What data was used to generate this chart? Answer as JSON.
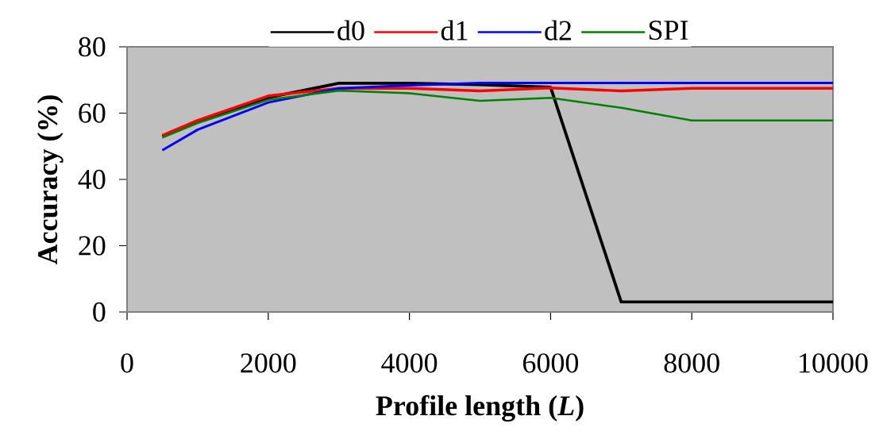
{
  "chart_data": {
    "type": "line",
    "xlabel": "**Profile length (*L*)**",
    "ylabel": "Accuracy (%)",
    "x": [
      500,
      1000,
      2000,
      3000,
      4000,
      5000,
      6000,
      7000,
      8000,
      9000,
      10000
    ],
    "series": [
      {
        "name": "d0",
        "color": "#000000",
        "values": [
          53,
          57.5,
          64.7,
          69,
          69,
          68.6,
          67.8,
          3,
          3,
          3,
          3
        ]
      },
      {
        "name": "d1",
        "color": "#ff0000",
        "values": [
          53.3,
          57.8,
          65.2,
          67.5,
          67.5,
          66.7,
          67.6,
          66.7,
          67.5,
          67.5,
          67.5
        ]
      },
      {
        "name": "d2",
        "color": "#0000ff",
        "values": [
          48.8,
          55,
          63.2,
          67.5,
          68.4,
          69.1,
          69.1,
          69.1,
          69.1,
          69.1,
          69.1
        ]
      },
      {
        "name": "SPI",
        "color": "#008000",
        "values": [
          52.6,
          57,
          64,
          66.8,
          66,
          63.7,
          64.6,
          61.6,
          57.8,
          57.8,
          57.8
        ]
      }
    ],
    "xlim": [
      0,
      10000
    ],
    "xticks": [
      0,
      2000,
      4000,
      6000,
      8000,
      10000
    ],
    "ylim": [
      0,
      80
    ],
    "yticks": [
      0,
      20,
      40,
      60,
      80
    ],
    "legend": "top",
    "marker": "none",
    "line_style": "solid"
  }
}
